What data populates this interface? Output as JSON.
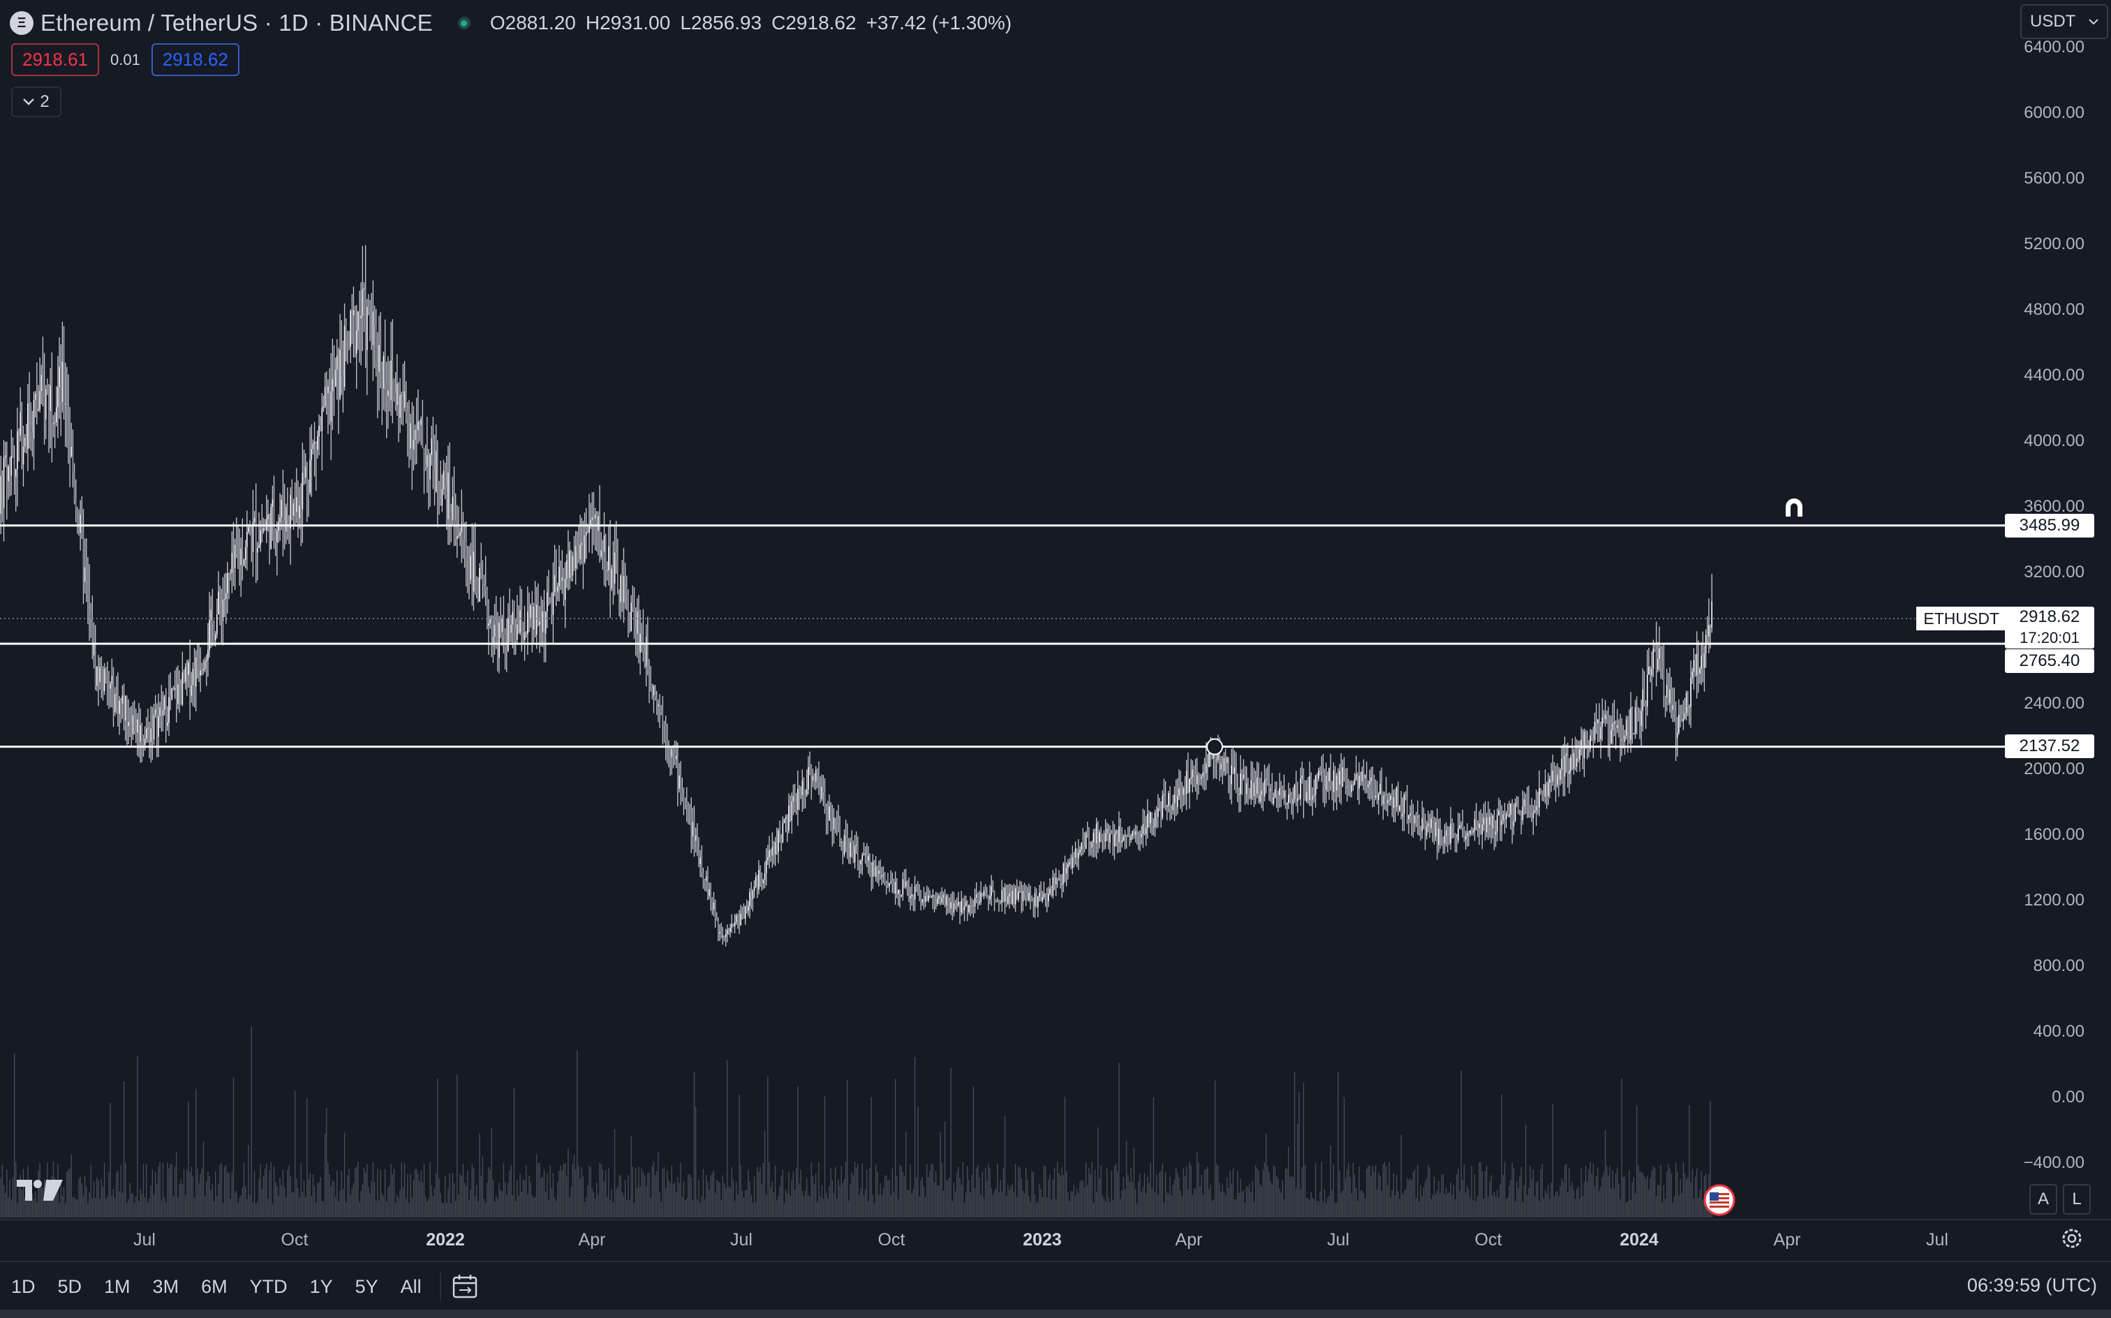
{
  "header": {
    "symbol_title": "Ethereum / TetherUS · 1D · BINANCE",
    "ohlc": [
      {
        "k": "O",
        "v": "2881.20"
      },
      {
        "k": "H",
        "v": "2931.00"
      },
      {
        "k": "L",
        "v": "2856.93"
      },
      {
        "k": "C",
        "v": "2918.62"
      }
    ],
    "change": "+37.42 (+1.30%)"
  },
  "trade": {
    "sell": "2918.61",
    "spread": "0.01",
    "buy": "2918.62"
  },
  "indicators_count": "2",
  "currency": "USDT",
  "price_axis": [
    "6400.00",
    "6000.00",
    "5600.00",
    "5200.00",
    "4800.00",
    "4400.00",
    "4000.00",
    "3600.00",
    "3200.00",
    "2400.00",
    "2000.00",
    "1600.00",
    "1200.00",
    "800.00",
    "400.00",
    "0.00",
    "−400.00"
  ],
  "levels": [
    "3485.99",
    "2765.40",
    "2137.52"
  ],
  "last_price": {
    "symbol": "ETHUSDT",
    "price": "2918.62",
    "countdown": "17:20:01"
  },
  "time_axis": [
    "Jul",
    "Oct",
    "2022",
    "Apr",
    "Jul",
    "Oct",
    "2023",
    "Apr",
    "Jul",
    "Oct",
    "2024",
    "Apr",
    "Jul"
  ],
  "scale_buttons": {
    "auto": "A",
    "log": "L"
  },
  "ranges": [
    "1D",
    "5D",
    "1M",
    "3M",
    "6M",
    "YTD",
    "1Y",
    "5Y",
    "All"
  ],
  "clock": "06:39:59 (UTC)",
  "colors": {
    "background": "#161a25",
    "candle": "#d1d4dc",
    "level": "#ffffff",
    "sell": "#f23645",
    "buy": "#2962ff"
  },
  "chart_data": {
    "type": "candlestick",
    "symbol": "ETHUSDT",
    "interval": "1D",
    "x": [
      "2021-05-15",
      "2021-06-01",
      "2021-07-01",
      "2021-08-01",
      "2021-09-01",
      "2021-10-01",
      "2021-11-10",
      "2021-12-01",
      "2022-01-01",
      "2022-02-01",
      "2022-03-01",
      "2022-04-01",
      "2022-05-01",
      "2022-06-18",
      "2022-07-01",
      "2022-08-13",
      "2022-09-01",
      "2022-10-01",
      "2022-11-10",
      "2022-12-01",
      "2023-01-01",
      "2023-02-01",
      "2023-03-01",
      "2023-04-16",
      "2023-05-01",
      "2023-06-01",
      "2023-07-01",
      "2023-08-01",
      "2023-09-01",
      "2023-10-01",
      "2023-11-01",
      "2023-12-01",
      "2024-01-01",
      "2024-01-12",
      "2024-01-25",
      "2024-02-15"
    ],
    "close": [
      4100,
      2600,
      2200,
      2600,
      3400,
      3600,
      4800,
      4300,
      3700,
      2800,
      2900,
      3500,
      2800,
      1000,
      1100,
      2000,
      1550,
      1300,
      1150,
      1250,
      1200,
      1600,
      1600,
      2100,
      1900,
      1850,
      1950,
      1850,
      1600,
      1650,
      1800,
      2200,
      2300,
      2700,
      2250,
      2918.62
    ],
    "ylim": [
      -500,
      6500
    ],
    "levels": [
      3485.99,
      2765.4,
      2137.52
    ]
  }
}
